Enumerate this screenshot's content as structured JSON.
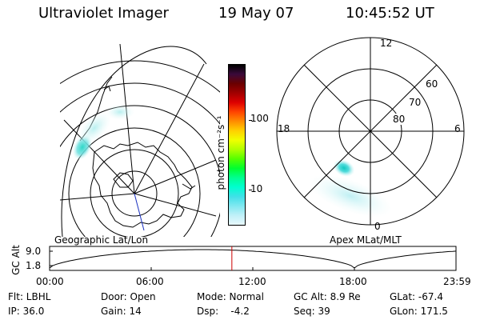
{
  "header": {
    "instrument": "Ultraviolet Imager",
    "date": "19 May 07",
    "time": "10:45:52 UT"
  },
  "geo_map": {
    "caption": "Geographic Lat/Lon"
  },
  "colorbar": {
    "label": "photon cm⁻²s⁻¹",
    "ticks": [
      "100",
      "10"
    ],
    "scale": "log",
    "colors": [
      "#000000",
      "#3a0a3a",
      "#6b0000",
      "#a00000",
      "#dd0000",
      "#ff4400",
      "#ff8c00",
      "#ffd000",
      "#f0ff00",
      "#b0ff00",
      "#55ff00",
      "#00ff30",
      "#00ff90",
      "#00ffd0",
      "#40e0e8",
      "#80e8f0",
      "#c0f0f8",
      "#e8f8fc"
    ]
  },
  "polar_plot": {
    "caption": "Apex MLat/MLT",
    "mlt_labels": {
      "top": "12",
      "left": "18",
      "right": "6",
      "bottom": "0"
    },
    "lat_labels": [
      "60",
      "70",
      "80"
    ]
  },
  "altitude_strip": {
    "axis_label": "GC Alt",
    "y_ticks": [
      "9.0",
      "1.8"
    ],
    "x_ticks": [
      "00:00",
      "06:00",
      "12:00",
      "18:00",
      "23:59"
    ],
    "current_time_hours": 10.764,
    "marker_color": "#cc0000"
  },
  "info": {
    "filter": "Flt: LBHL",
    "door": "Door: Open",
    "mode": "Mode: Normal",
    "gc_alt": "GC Alt: 8.9 Re",
    "glat": "GLat: -67.4",
    "ip": "IP: 36.0",
    "gain": "Gain: 14",
    "dsp": "Dsp:    -4.2",
    "seq": "Seq: 39",
    "glon": "GLon: 171.5"
  }
}
